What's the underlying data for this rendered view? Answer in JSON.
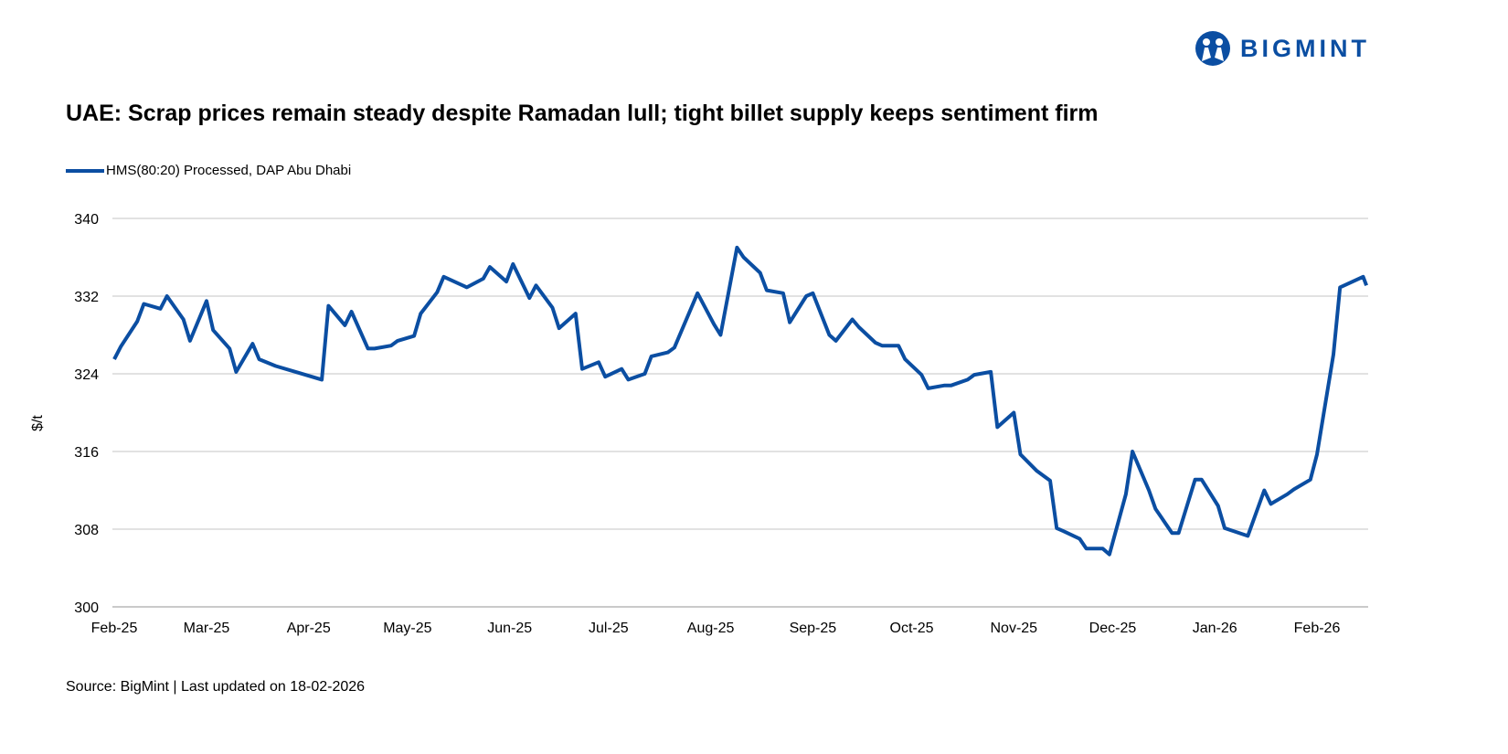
{
  "brand": {
    "name": "BIGMINT",
    "color": "#0b4ea2"
  },
  "title": "UAE: Scrap prices remain steady despite Ramadan lull; tight billet supply keeps sentiment firm",
  "source": "Source: BigMint | Last updated on 18-02-2026",
  "chart_data": {
    "type": "line",
    "title": "UAE: Scrap prices remain steady despite Ramadan lull; tight billet supply keeps sentiment firm",
    "xlabel": "",
    "ylabel": "$/t",
    "ylim": [
      300,
      340
    ],
    "yticks": [
      "300",
      "308",
      "316",
      "324",
      "332",
      "340"
    ],
    "xlim": [
      "2025-02-01",
      "2026-02-16"
    ],
    "xticks": [
      {
        "date": "2025-02-01",
        "label": "Feb-25"
      },
      {
        "date": "2025-03-01",
        "label": "Mar-25"
      },
      {
        "date": "2025-04-01",
        "label": "Apr-25"
      },
      {
        "date": "2025-05-01",
        "label": "May-25"
      },
      {
        "date": "2025-06-01",
        "label": "Jun-25"
      },
      {
        "date": "2025-07-01",
        "label": "Jul-25"
      },
      {
        "date": "2025-08-01",
        "label": "Aug-25"
      },
      {
        "date": "2025-09-01",
        "label": "Sep-25"
      },
      {
        "date": "2025-10-01",
        "label": "Oct-25"
      },
      {
        "date": "2025-11-01",
        "label": "Nov-25"
      },
      {
        "date": "2025-12-01",
        "label": "Dec-25"
      },
      {
        "date": "2026-01-01",
        "label": "Jan-26"
      },
      {
        "date": "2026-02-01",
        "label": "Feb-26"
      }
    ],
    "grid": "horizontal",
    "legend_position": "top-left",
    "series": [
      {
        "name": "HMS(80:20) Processed, DAP Abu Dhabi",
        "color": "#0b4ea2",
        "x": [
          "2025-02-01",
          "2025-02-03",
          "2025-02-08",
          "2025-02-10",
          "2025-02-15",
          "2025-02-17",
          "2025-02-22",
          "2025-02-24",
          "2025-03-01",
          "2025-03-03",
          "2025-03-08",
          "2025-03-10",
          "2025-03-15",
          "2025-03-17",
          "2025-03-22",
          "2025-03-29",
          "2025-04-05",
          "2025-04-07",
          "2025-04-12",
          "2025-04-14",
          "2025-04-19",
          "2025-04-21",
          "2025-04-26",
          "2025-04-28",
          "2025-05-03",
          "2025-05-05",
          "2025-05-10",
          "2025-05-12",
          "2025-05-19",
          "2025-05-24",
          "2025-05-26",
          "2025-05-31",
          "2025-06-02",
          "2025-06-07",
          "2025-06-09",
          "2025-06-14",
          "2025-06-16",
          "2025-06-21",
          "2025-06-23",
          "2025-06-28",
          "2025-06-30",
          "2025-07-05",
          "2025-07-07",
          "2025-07-12",
          "2025-07-14",
          "2025-07-19",
          "2025-07-21",
          "2025-07-28",
          "2025-08-02",
          "2025-08-04",
          "2025-08-09",
          "2025-08-11",
          "2025-08-16",
          "2025-08-18",
          "2025-08-23",
          "2025-08-25",
          "2025-08-30",
          "2025-09-01",
          "2025-09-06",
          "2025-09-08",
          "2025-09-13",
          "2025-09-15",
          "2025-09-20",
          "2025-09-22",
          "2025-09-27",
          "2025-09-29",
          "2025-10-04",
          "2025-10-06",
          "2025-10-11",
          "2025-10-13",
          "2025-10-18",
          "2025-10-20",
          "2025-10-25",
          "2025-10-27",
          "2025-11-01",
          "2025-11-03",
          "2025-11-08",
          "2025-11-12",
          "2025-11-14",
          "2025-11-16",
          "2025-11-21",
          "2025-11-23",
          "2025-11-28",
          "2025-11-30",
          "2025-12-05",
          "2025-12-07",
          "2025-12-12",
          "2025-12-14",
          "2025-12-19",
          "2025-12-21",
          "2025-12-26",
          "2025-12-28",
          "2026-01-02",
          "2026-01-04",
          "2026-01-11",
          "2026-01-16",
          "2026-01-18",
          "2026-01-23",
          "2026-01-25",
          "2026-01-30",
          "2026-02-01",
          "2026-02-06",
          "2026-02-08",
          "2026-02-15",
          "2026-02-16"
        ],
        "values": [
          325.5,
          326.8,
          329.4,
          331.2,
          330.7,
          332.0,
          329.6,
          327.4,
          331.5,
          328.5,
          326.6,
          324.2,
          327.1,
          325.5,
          324.8,
          324.1,
          323.4,
          331.0,
          329.0,
          330.4,
          326.6,
          326.6,
          326.9,
          327.4,
          327.9,
          330.2,
          332.4,
          334.0,
          332.9,
          333.8,
          335.0,
          333.5,
          335.3,
          331.8,
          333.1,
          330.8,
          328.7,
          330.2,
          324.5,
          325.2,
          323.7,
          324.5,
          323.4,
          324.0,
          325.8,
          326.2,
          326.7,
          332.3,
          329.1,
          328.0,
          337.0,
          336.0,
          334.4,
          332.6,
          332.3,
          329.3,
          332.0,
          332.3,
          328.0,
          327.4,
          329.6,
          328.8,
          327.2,
          326.9,
          326.9,
          325.5,
          323.9,
          322.5,
          322.8,
          322.8,
          323.4,
          323.9,
          324.2,
          318.5,
          320.0,
          315.7,
          314.0,
          313.0,
          308.1,
          307.8,
          307.0,
          306.0,
          306.0,
          305.4,
          311.6,
          316.0,
          312.0,
          310.1,
          307.6,
          307.6,
          313.1,
          313.1,
          310.4,
          308.1,
          307.3,
          312.0,
          310.6,
          311.6,
          312.1,
          313.1,
          315.7,
          326.0,
          332.9,
          334.0,
          333.1
        ]
      }
    ]
  }
}
